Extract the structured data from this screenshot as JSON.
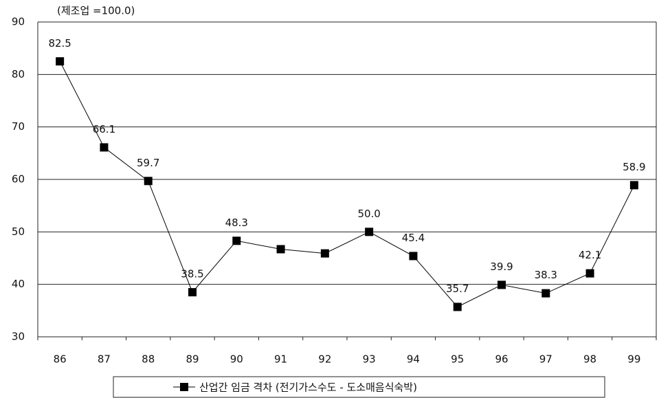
{
  "chart_data": {
    "type": "line",
    "subtitle": "(제조업 =100.0)",
    "categories": [
      "86",
      "87",
      "88",
      "89",
      "90",
      "91",
      "92",
      "93",
      "94",
      "95",
      "96",
      "97",
      "98",
      "99"
    ],
    "series": [
      {
        "name": "산업간 임금 격차 (전기가스수도 - 도소매음식숙박)",
        "color": "#000000",
        "values": [
          82.5,
          66.1,
          59.7,
          38.5,
          48.3,
          46.7,
          45.9,
          50.0,
          45.4,
          35.7,
          39.9,
          38.3,
          42.1,
          58.9
        ],
        "value_labels": [
          "82.5",
          "66.1",
          "59.7",
          "38.5",
          "48.3",
          null,
          null,
          "50.0",
          "45.4",
          "35.7",
          "39.9",
          "38.3",
          "42.1",
          "58.9"
        ]
      }
    ],
    "ylim": [
      30,
      90
    ],
    "yticks": [
      30,
      40,
      50,
      60,
      70,
      80,
      90
    ],
    "grid": true
  }
}
